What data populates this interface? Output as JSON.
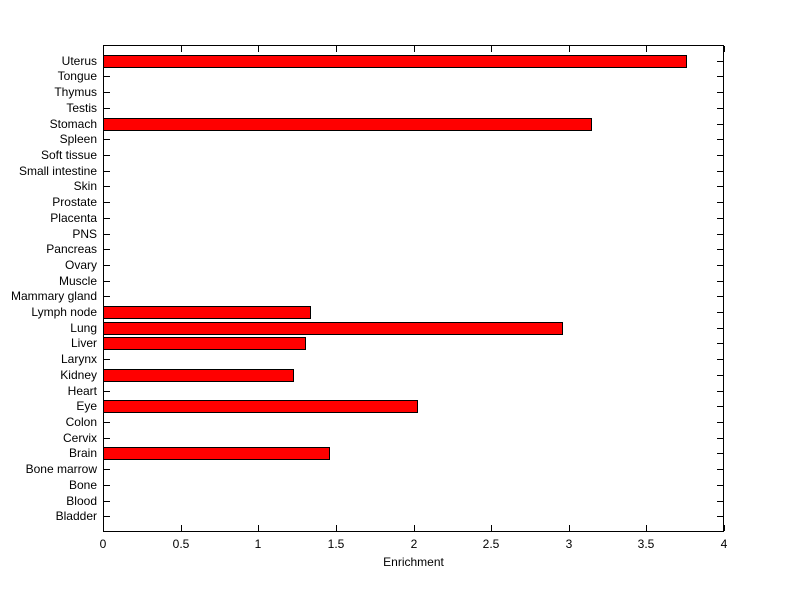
{
  "figure": {
    "background": "#ffffff"
  },
  "chart_data": {
    "type": "bar",
    "orientation": "horizontal",
    "title": "",
    "xlabel": "Enrichment",
    "ylabel": "",
    "categories": [
      "Uterus",
      "Tongue",
      "Thymus",
      "Testis",
      "Stomach",
      "Spleen",
      "Soft tissue",
      "Small intestine",
      "Skin",
      "Prostate",
      "Placenta",
      "PNS",
      "Pancreas",
      "Ovary",
      "Muscle",
      "Mammary gland",
      "Lymph node",
      "Lung",
      "Liver",
      "Larynx",
      "Kidney",
      "Heart",
      "Eye",
      "Colon",
      "Cervix",
      "Brain",
      "Bone marrow",
      "Bone",
      "Blood",
      "Bladder"
    ],
    "values": [
      3.76,
      0,
      0,
      0,
      3.15,
      0,
      0,
      0,
      0,
      0,
      0,
      0,
      0,
      0,
      0,
      0,
      1.34,
      2.96,
      1.31,
      0,
      1.23,
      0,
      2.03,
      0,
      0,
      1.46,
      0,
      0,
      0,
      0
    ],
    "xlim": [
      0,
      4
    ],
    "xticks": [
      0,
      0.5,
      1,
      1.5,
      2,
      2.5,
      3,
      3.5,
      4
    ],
    "xtick_labels": [
      "0",
      "0.5",
      "1",
      "1.5",
      "2",
      "2.5",
      "3",
      "3.5",
      "4"
    ],
    "bar_color": "#ff0000",
    "bar_border_color": "#000000",
    "axis_color": "#000000",
    "plot_background": "#ffffff",
    "grid": false,
    "tick_direction": "in",
    "legend": false
  }
}
